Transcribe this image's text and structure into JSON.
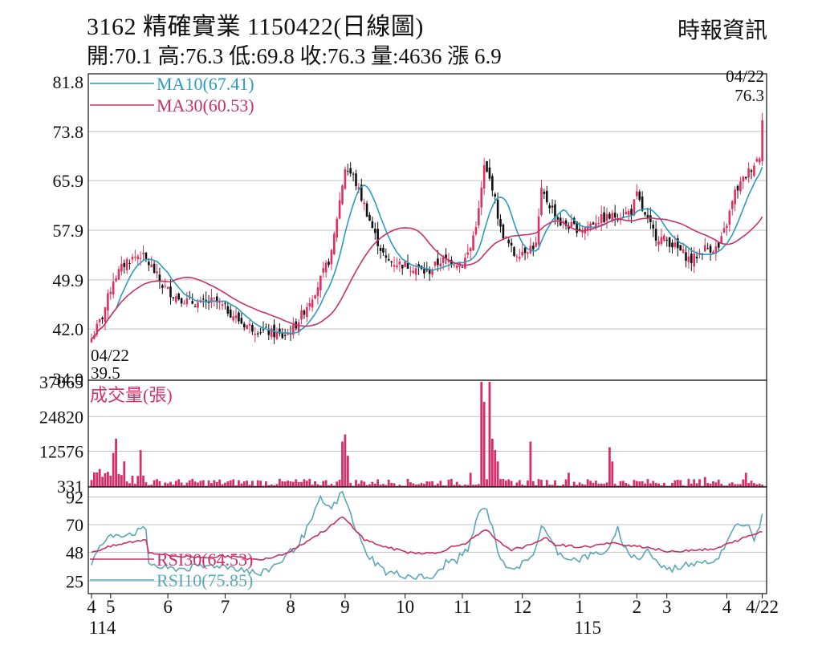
{
  "header": {
    "title": "3162 精確實業 1150422(日線圖)",
    "source": "時報資訊",
    "ohlc_line": "開:70.1 高:76.3 低:69.8 收:76.3 量:4636 漲 6.9"
  },
  "colors": {
    "up": "#e0305e",
    "down": "#111111",
    "ma10": "#2a9cc0",
    "ma30": "#c8306a",
    "volume": "#d2306a",
    "rsi30": "#c8306a",
    "rsi10": "#5aa8b8",
    "grid": "#c0c0c0"
  },
  "chart_data": [
    {
      "type": "candlestick",
      "name": "price",
      "ylim": [
        34.0,
        81.8
      ],
      "y_ticks": [
        "81.8",
        "73.8",
        "65.9",
        "57.9",
        "49.9",
        "42.0",
        "34.0"
      ],
      "y_tick_values": [
        81.8,
        73.8,
        65.9,
        57.9,
        49.9,
        42.0,
        34.0
      ],
      "legend": [
        {
          "key": "ma10",
          "label": "MA10(67.41)"
        },
        {
          "key": "ma30",
          "label": "MA30(60.53)"
        }
      ],
      "annotations": {
        "low_date": "04/22",
        "low_value": "39.5",
        "high_date": "04/22",
        "high_value": "76.3"
      },
      "anchors": [
        [
          0,
          40.5
        ],
        [
          4,
          44
        ],
        [
          8,
          50
        ],
        [
          13,
          53
        ],
        [
          18,
          54
        ],
        [
          22,
          52
        ],
        [
          26,
          49
        ],
        [
          30,
          47.5
        ],
        [
          35,
          46.5
        ],
        [
          40,
          46
        ],
        [
          45,
          46.5
        ],
        [
          50,
          45
        ],
        [
          55,
          43
        ],
        [
          60,
          42
        ],
        [
          65,
          41.5
        ],
        [
          70,
          40.8
        ],
        [
          74,
          42
        ],
        [
          78,
          45
        ],
        [
          83,
          49
        ],
        [
          88,
          54
        ],
        [
          90,
          60
        ],
        [
          93,
          68
        ],
        [
          96,
          66.5
        ],
        [
          100,
          62
        ],
        [
          104,
          57
        ],
        [
          108,
          53
        ],
        [
          113,
          52.5
        ],
        [
          118,
          52
        ],
        [
          123,
          51
        ],
        [
          128,
          53
        ],
        [
          132,
          53
        ],
        [
          136,
          52.5
        ],
        [
          139,
          55
        ],
        [
          142,
          61
        ],
        [
          144,
          68
        ],
        [
          147,
          65
        ],
        [
          150,
          58
        ],
        [
          155,
          54
        ],
        [
          160,
          55
        ],
        [
          163,
          55.5
        ],
        [
          165,
          64
        ],
        [
          168,
          62
        ],
        [
          172,
          59
        ],
        [
          176,
          58.5
        ],
        [
          180,
          58
        ],
        [
          185,
          59.5
        ],
        [
          190,
          60
        ],
        [
          195,
          60.5
        ],
        [
          198,
          61
        ],
        [
          200,
          63.5
        ],
        [
          203,
          60
        ],
        [
          207,
          57
        ],
        [
          212,
          56
        ],
        [
          216,
          54.5
        ],
        [
          220,
          53
        ],
        [
          225,
          55
        ],
        [
          230,
          55
        ],
        [
          233,
          59
        ],
        [
          236,
          64
        ],
        [
          239,
          66
        ],
        [
          242,
          68
        ],
        [
          245,
          70
        ],
        [
          246,
          76.3
        ]
      ],
      "ma10_last": 67.41,
      "ma30_last": 60.53
    },
    {
      "type": "bar",
      "name": "volume",
      "ylabel": "成交量(張)",
      "ylim": [
        0,
        37065
      ],
      "y_ticks": [
        "37065",
        "24820",
        "12576",
        "331"
      ],
      "y_tick_values": [
        37065,
        24820,
        12576,
        331
      ],
      "spikes": [
        [
          8,
          12000
        ],
        [
          9,
          17000
        ],
        [
          12,
          9000
        ],
        [
          18,
          13000
        ],
        [
          92,
          16000
        ],
        [
          93,
          18500
        ],
        [
          94,
          11000
        ],
        [
          139,
          5000
        ],
        [
          143,
          37065
        ],
        [
          144,
          30000
        ],
        [
          146,
          37065
        ],
        [
          147,
          17000
        ],
        [
          148,
          13000
        ],
        [
          149,
          9000
        ],
        [
          161,
          16000
        ],
        [
          175,
          5000
        ],
        [
          190,
          14000
        ],
        [
          191,
          9000
        ],
        [
          225,
          3500
        ],
        [
          240,
          5000
        ]
      ]
    },
    {
      "type": "line",
      "name": "rsi",
      "ylim": [
        15,
        100
      ],
      "y_ticks": [
        "92",
        "70",
        "48",
        "25"
      ],
      "y_tick_values": [
        92,
        70,
        48,
        25
      ],
      "legend": [
        {
          "key": "rsi30",
          "label": "RSI30(64.53)"
        },
        {
          "key": "rsi10",
          "label": "RSI10(75.85)"
        }
      ],
      "rsi10_anchors": [
        [
          0,
          40
        ],
        [
          4,
          55
        ],
        [
          8,
          62
        ],
        [
          14,
          63
        ],
        [
          20,
          66
        ],
        [
          21,
          40
        ],
        [
          26,
          35
        ],
        [
          33,
          35
        ],
        [
          40,
          36
        ],
        [
          46,
          38
        ],
        [
          55,
          35
        ],
        [
          62,
          30
        ],
        [
          66,
          36
        ],
        [
          70,
          42
        ],
        [
          76,
          55
        ],
        [
          80,
          70
        ],
        [
          84,
          90
        ],
        [
          88,
          82
        ],
        [
          92,
          96
        ],
        [
          96,
          72
        ],
        [
          100,
          50
        ],
        [
          104,
          40
        ],
        [
          108,
          32
        ],
        [
          114,
          30
        ],
        [
          120,
          28
        ],
        [
          126,
          28
        ],
        [
          130,
          40
        ],
        [
          134,
          42
        ],
        [
          138,
          50
        ],
        [
          142,
          78
        ],
        [
          144,
          85
        ],
        [
          147,
          70
        ],
        [
          150,
          40
        ],
        [
          155,
          36
        ],
        [
          160,
          40
        ],
        [
          163,
          52
        ],
        [
          165,
          70
        ],
        [
          168,
          58
        ],
        [
          172,
          46
        ],
        [
          178,
          42
        ],
        [
          184,
          46
        ],
        [
          190,
          50
        ],
        [
          193,
          66
        ],
        [
          196,
          50
        ],
        [
          200,
          42
        ],
        [
          204,
          50
        ],
        [
          208,
          38
        ],
        [
          212,
          34
        ],
        [
          218,
          38
        ],
        [
          224,
          42
        ],
        [
          228,
          40
        ],
        [
          232,
          50
        ],
        [
          236,
          68
        ],
        [
          240,
          72
        ],
        [
          243,
          60
        ],
        [
          246,
          76
        ]
      ],
      "rsi30_anchors": [
        [
          0,
          48
        ],
        [
          6,
          52
        ],
        [
          14,
          56
        ],
        [
          20,
          58
        ],
        [
          21,
          48
        ],
        [
          30,
          45
        ],
        [
          40,
          44
        ],
        [
          50,
          45
        ],
        [
          60,
          42
        ],
        [
          66,
          44
        ],
        [
          72,
          48
        ],
        [
          80,
          58
        ],
        [
          86,
          66
        ],
        [
          92,
          76
        ],
        [
          96,
          68
        ],
        [
          100,
          58
        ],
        [
          108,
          52
        ],
        [
          116,
          48
        ],
        [
          126,
          47
        ],
        [
          132,
          52
        ],
        [
          138,
          56
        ],
        [
          142,
          62
        ],
        [
          145,
          66
        ],
        [
          148,
          58
        ],
        [
          154,
          50
        ],
        [
          162,
          54
        ],
        [
          166,
          60
        ],
        [
          170,
          54
        ],
        [
          180,
          52
        ],
        [
          190,
          55
        ],
        [
          196,
          54
        ],
        [
          204,
          52
        ],
        [
          212,
          48
        ],
        [
          220,
          50
        ],
        [
          228,
          50
        ],
        [
          234,
          55
        ],
        [
          240,
          60
        ],
        [
          246,
          64.5
        ]
      ]
    }
  ],
  "x_axis": {
    "bars": 247,
    "labels": [
      {
        "text": "4",
        "bar": 0
      },
      {
        "text": "5",
        "bar": 7
      },
      {
        "text": "6",
        "bar": 28
      },
      {
        "text": "7",
        "bar": 49
      },
      {
        "text": "8",
        "bar": 73
      },
      {
        "text": "9",
        "bar": 93
      },
      {
        "text": "10",
        "bar": 115
      },
      {
        "text": "11",
        "bar": 136
      },
      {
        "text": "12",
        "bar": 158
      },
      {
        "text": "1",
        "bar": 179
      },
      {
        "text": "2",
        "bar": 200
      },
      {
        "text": "3",
        "bar": 211
      },
      {
        "text": "4",
        "bar": 233
      },
      {
        "text": "4/22",
        "bar": 246
      }
    ],
    "year_labels": [
      {
        "text": "114",
        "bar": 4
      },
      {
        "text": "115",
        "bar": 182
      }
    ]
  }
}
